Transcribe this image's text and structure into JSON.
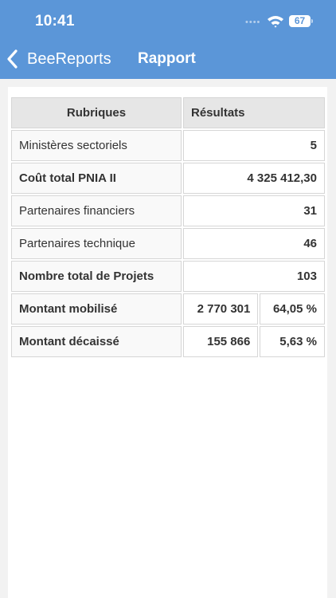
{
  "status_bar": {
    "time": "10:41",
    "battery": "67",
    "icons": [
      "signal-dots-icon",
      "wifi-icon",
      "battery-icon"
    ]
  },
  "nav": {
    "back_label": "BeeReports",
    "title": "Rapport",
    "back_icon": "chevron-left-icon"
  },
  "colors": {
    "header": "#5b96d8",
    "percent": "#a01818"
  },
  "table": {
    "headers": [
      "Rubriques",
      "Résultats"
    ],
    "rows": [
      {
        "label": "Ministères sectoriels",
        "value": "5",
        "label_bold": false
      },
      {
        "label": "Coût total PNIA II",
        "value": "4 325 412,30",
        "label_bold": true
      },
      {
        "label": "Partenaires financiers",
        "value": "31",
        "label_bold": false
      },
      {
        "label": "Partenaires technique",
        "value": "46",
        "label_bold": false
      },
      {
        "label": "Nombre total de Projets",
        "value": "103",
        "label_bold": true
      },
      {
        "label": "Montant mobilisé",
        "value": "2 770 301",
        "percent": "64,05 %",
        "label_bold": true
      },
      {
        "label": "Montant décaissé",
        "value": "155 866",
        "percent": "5,63 %",
        "label_bold": true
      }
    ]
  }
}
